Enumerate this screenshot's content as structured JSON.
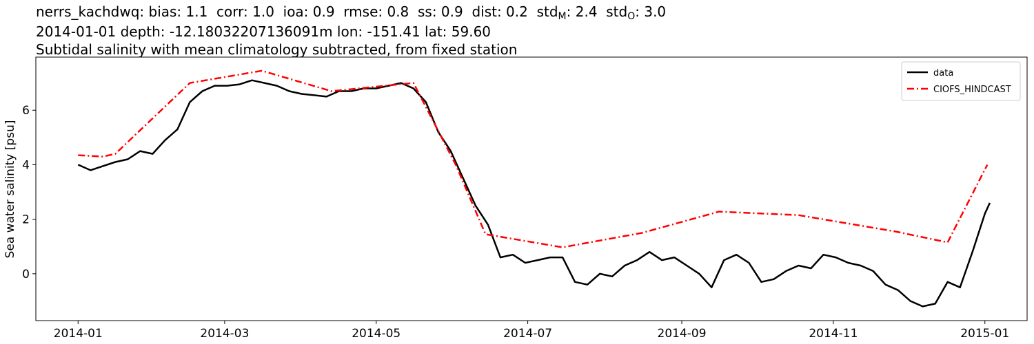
{
  "chart_data": {
    "type": "line",
    "title_segments": [
      "nerrs_kachdwq: bias: 1.1  corr: 1.0  ioa: 0.9  rmse: 0.8  ss: 0.9  dist: 0.2  std",
      "M",
      ": 2.4  std",
      "O",
      ": 3.0"
    ],
    "subtitle": "2014-01-01 depth: -12.18032207136091m lon: -151.41 lat: 59.60",
    "subtitle2": "Subtidal salinity with mean climatology subtracted, from fixed station",
    "ylabel": "Sea water salinity [psu]",
    "xlim": [
      -17,
      382
    ],
    "xticks": [
      {
        "value": 0,
        "label": "2014-01"
      },
      {
        "value": 59,
        "label": "2014-03"
      },
      {
        "value": 120,
        "label": "2014-05"
      },
      {
        "value": 181,
        "label": "2014-07"
      },
      {
        "value": 243,
        "label": "2014-09"
      },
      {
        "value": 304,
        "label": "2014-11"
      },
      {
        "value": 365,
        "label": "2015-01"
      }
    ],
    "ylim": [
      -1.72,
      7.95
    ],
    "yticks": [
      0,
      2,
      4,
      6
    ],
    "legend": "upper right",
    "series": [
      {
        "name": "data",
        "color": "#000000",
        "dash": "solid",
        "x": [
          0,
          5,
          10,
          15,
          20,
          25,
          30,
          35,
          40,
          45,
          50,
          55,
          60,
          65,
          70,
          75,
          80,
          85,
          90,
          95,
          100,
          105,
          110,
          115,
          120,
          125,
          130,
          135,
          140,
          145,
          150,
          155,
          160,
          165,
          170,
          175,
          180,
          185,
          190,
          195,
          200,
          205,
          210,
          215,
          220,
          225,
          230,
          235,
          240,
          245,
          250,
          255,
          260,
          265,
          270,
          275,
          280,
          285,
          290,
          295,
          300,
          305,
          310,
          315,
          320,
          325,
          330,
          335,
          340,
          345,
          350,
          355,
          360,
          365,
          367
        ],
        "values": [
          4.0,
          3.8,
          3.95,
          4.1,
          4.2,
          4.5,
          4.4,
          4.9,
          5.3,
          6.3,
          6.7,
          6.9,
          6.9,
          6.95,
          7.1,
          7.0,
          6.9,
          6.7,
          6.6,
          6.55,
          6.5,
          6.7,
          6.7,
          6.8,
          6.8,
          6.9,
          7.0,
          6.8,
          6.3,
          5.2,
          4.5,
          3.5,
          2.5,
          1.8,
          0.6,
          0.7,
          0.4,
          0.5,
          0.6,
          0.6,
          -0.3,
          -0.4,
          0.0,
          -0.1,
          0.3,
          0.5,
          0.8,
          0.5,
          0.6,
          0.3,
          0.0,
          -0.5,
          0.5,
          0.7,
          0.4,
          -0.3,
          -0.2,
          0.1,
          0.3,
          0.2,
          0.7,
          0.6,
          0.4,
          0.3,
          0.1,
          -0.4,
          -0.6,
          -1.0,
          -1.2,
          -1.1,
          -0.3,
          -0.5,
          0.8,
          2.2,
          2.6
        ]
      },
      {
        "name": "CIOFS_HINDCAST",
        "color": "#ff0000",
        "dash": "dashdot",
        "x": [
          0,
          10,
          15,
          45,
          74,
          102,
          135,
          152,
          164,
          195,
          227,
          258,
          290,
          329,
          350,
          366
        ],
        "values": [
          4.35,
          4.3,
          4.4,
          7.0,
          7.45,
          6.7,
          7.0,
          4.0,
          1.45,
          0.97,
          1.5,
          2.28,
          2.15,
          1.55,
          1.15,
          4.0
        ]
      }
    ]
  }
}
